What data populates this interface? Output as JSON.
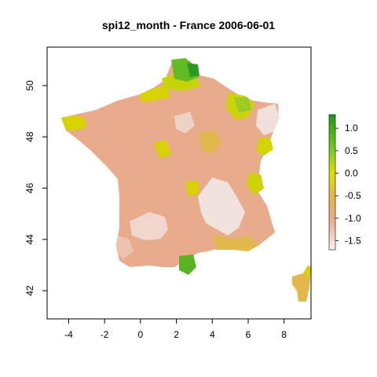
{
  "title": "spi12_month - France 2006-06-01",
  "map": {
    "x_ticks": [
      "-4",
      "-2",
      "0",
      "2",
      "4",
      "6",
      "8"
    ],
    "y_ticks": [
      "42",
      "44",
      "46",
      "48",
      "50"
    ],
    "x_range": [
      -5.2,
      9.5
    ],
    "y_range": [
      40.9,
      51.5
    ]
  },
  "legend": {
    "ticks": [
      "1.0",
      "0.5",
      "0.0",
      "-0.5",
      "-1.0",
      "-1.5"
    ],
    "range": [
      -1.7,
      1.3
    ],
    "colors": {
      "1.3": "#1a9a1a",
      "0.5": "#7ccc22",
      "0.0": "#dde000",
      "-0.5": "#e3b84a",
      "-1.0": "#e8ab8c",
      "-1.7": "#f4f2f2"
    }
  }
}
